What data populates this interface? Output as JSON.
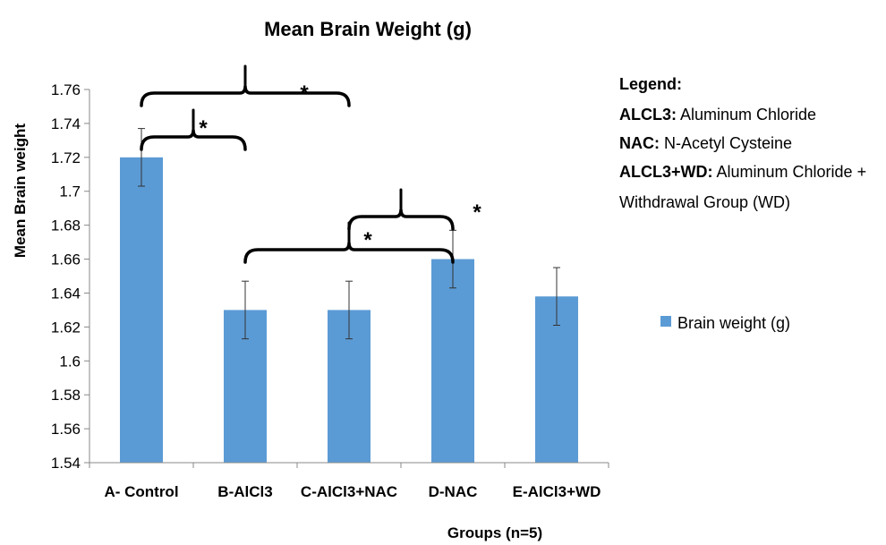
{
  "chart_data": {
    "type": "bar",
    "title": "Mean Brain Weight (g)",
    "xlabel": "Groups   (n=5)",
    "ylabel": "Mean Brain weight",
    "categories": [
      "A- Control",
      "B-AlCl3",
      "C-AlCl3+NAC",
      "D-NAC",
      "E-AlCl3+WD"
    ],
    "series": [
      {
        "name": "Brain weight (g)",
        "values": [
          1.72,
          1.63,
          1.63,
          1.66,
          1.638
        ],
        "errors": [
          0.017,
          0.017,
          0.017,
          0.017,
          0.017
        ],
        "color": "#5b9bd5"
      }
    ],
    "ylim": [
      1.54,
      1.76
    ],
    "yticks": [
      "1.54",
      "1.56",
      "1.58",
      "1.6",
      "1.62",
      "1.64",
      "1.66",
      "1.68",
      "1.7",
      "1.72",
      "1.74",
      "1.76"
    ],
    "grid": false,
    "legend_position": "right",
    "significance": [
      {
        "from": 0,
        "to": 2,
        "label": "*"
      },
      {
        "from": 0,
        "to": 1,
        "label": "*"
      },
      {
        "from": 1,
        "to": 3,
        "label": "*"
      },
      {
        "from": 2,
        "to": 3,
        "label": "*"
      }
    ],
    "notes": {
      "heading": "Legend:",
      "lines": [
        {
          "term": "ALCL3:",
          "text": " Aluminum Chloride"
        },
        {
          "term": "NAC:",
          "text": " N-Acetyl Cysteine"
        },
        {
          "term": "ALCL3+WD:",
          "text": "  Aluminum Chloride +"
        },
        {
          "term": "",
          "text": "Withdrawal Group (WD)"
        }
      ]
    }
  }
}
